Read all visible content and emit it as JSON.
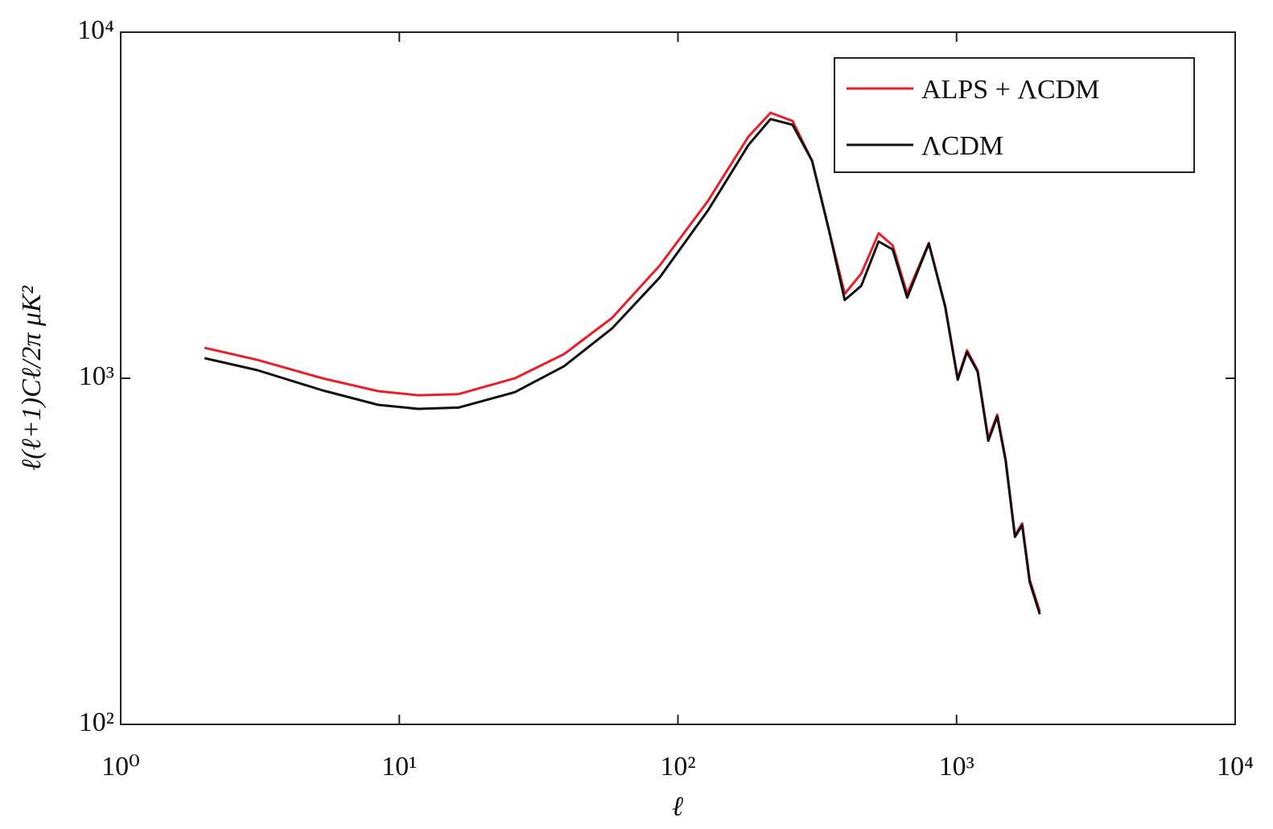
{
  "chart_data": {
    "type": "line",
    "x_label": "ℓ",
    "y_label": "ℓ(ℓ+1)Cℓ/2π μK²",
    "log_x": true,
    "log_y": true,
    "xlim": [
      1,
      10000
    ],
    "xticks": [
      {
        "value": 1,
        "label": "10⁰"
      },
      {
        "value": 10,
        "label": "10¹"
      },
      {
        "value": 100,
        "label": "10²"
      },
      {
        "value": 1000,
        "label": "10³"
      },
      {
        "value": 10000,
        "label": "10⁴"
      }
    ],
    "ylim": [
      100,
      10000
    ],
    "yticks": [
      {
        "value": 100,
        "label": "10²"
      },
      {
        "value": 1000,
        "label": "10³"
      },
      {
        "value": 10000,
        "label": "10⁴"
      }
    ],
    "legend_position": "upper right",
    "x": [
      2,
      3.1,
      5.3,
      8.4,
      11.7,
      16.3,
      26,
      39,
      58,
      86,
      128,
      179,
      215,
      258,
      303,
      348,
      397,
      455,
      525,
      590,
      665,
      795,
      910,
      1010,
      1090,
      1190,
      1300,
      1400,
      1500,
      1620,
      1720,
      1830,
      1990
    ],
    "series": [
      {
        "name": "ALPS + ΛCDM",
        "color": "#e8202a",
        "values": [
          1225,
          1130,
          1000,
          918,
          893,
          900,
          1000,
          1174,
          1494,
          2116,
          3250,
          4990,
          5850,
          5540,
          4250,
          2690,
          1755,
          2006,
          2624,
          2420,
          1755,
          2460,
          1618,
          1000,
          1205,
          1055,
          670,
          785,
          585,
          352,
          381,
          262,
          212
        ]
      },
      {
        "name": "ΛCDM",
        "color": "#111111",
        "values": [
          1143,
          1055,
          923,
          838,
          816,
          823,
          912,
          1083,
          1393,
          1955,
          3050,
          4720,
          5610,
          5400,
          4250,
          2690,
          1683,
          1850,
          2485,
          2355,
          1710,
          2450,
          1610,
          990,
          1190,
          1045,
          660,
          775,
          578,
          348,
          376,
          258,
          208
        ]
      }
    ]
  }
}
